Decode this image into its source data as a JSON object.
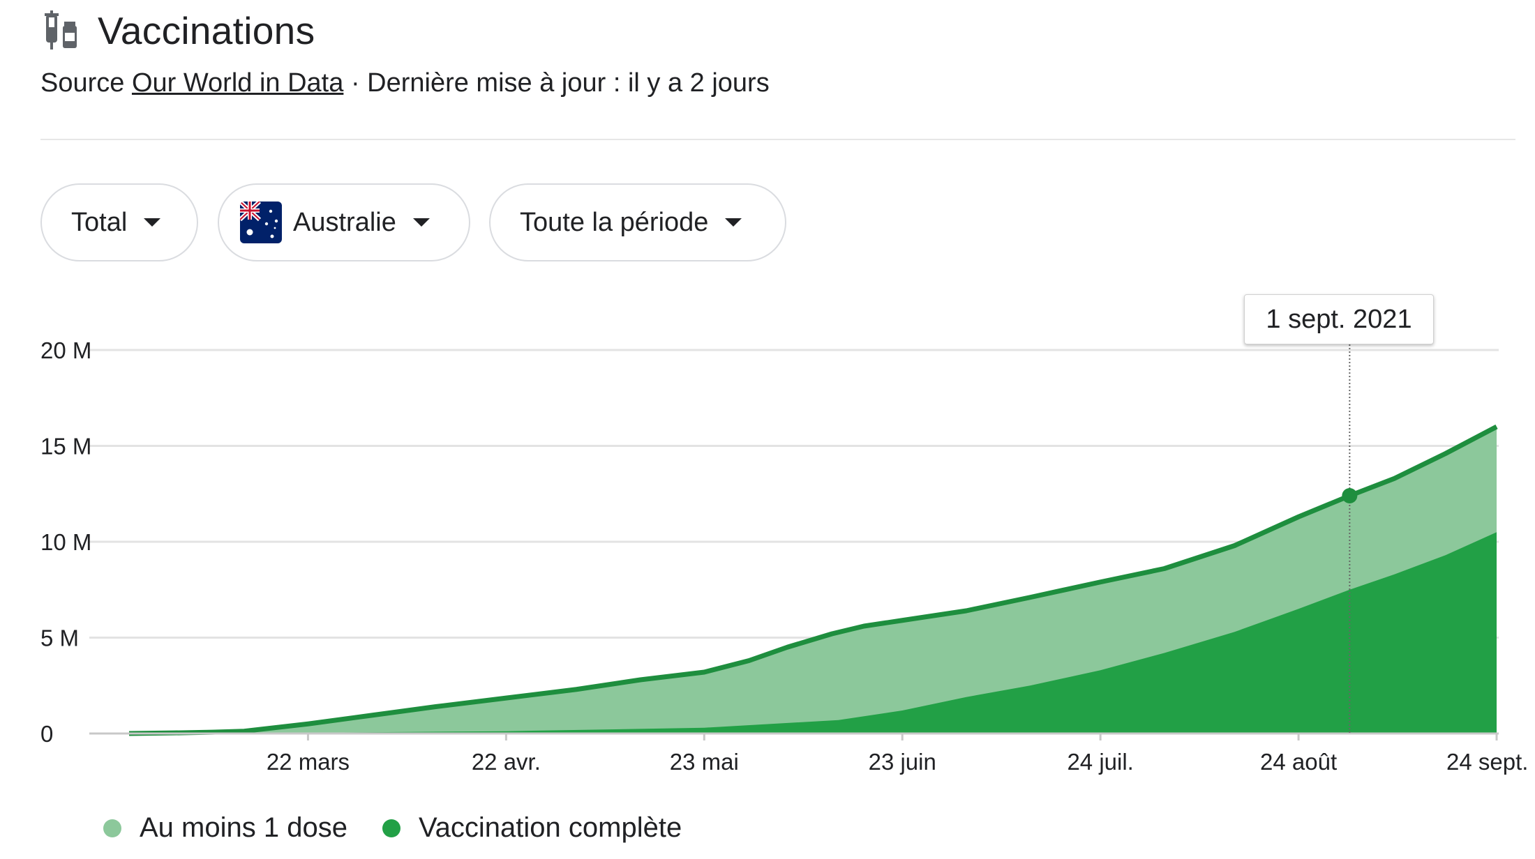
{
  "header": {
    "title": "Vaccinations",
    "icon": "syringe-vial-icon",
    "source_prefix": "Source",
    "source_link": "Our World in Data",
    "update_text": "· Dernière mise à jour : il y a 2 jours"
  },
  "filters": {
    "metric": "Total",
    "country": "Australie",
    "country_flag": "australia-flag-icon",
    "period": "Toute la période"
  },
  "tooltip": {
    "date": "1 sept. 2021"
  },
  "colors": {
    "at_least_one_dose": "#8cc89b",
    "fully_vaccinated": "#22a046",
    "line": "#1e8e3e",
    "grid": "#e3e3e3",
    "axis": "#c8c8c8"
  },
  "chart_data": {
    "type": "area",
    "title": "",
    "xlabel": "",
    "ylabel": "",
    "ylim": [
      0,
      20000000
    ],
    "y_ticks": [
      {
        "value": 0,
        "label": "0"
      },
      {
        "value": 5000000,
        "label": "5 M"
      },
      {
        "value": 10000000,
        "label": "10 M"
      },
      {
        "value": 15000000,
        "label": "15 M"
      },
      {
        "value": 20000000,
        "label": "20 M"
      }
    ],
    "x_range": [
      "2021-02-22",
      "2021-09-24"
    ],
    "x_ticks": [
      {
        "date": "2021-03-22",
        "label": "22 mars"
      },
      {
        "date": "2021-04-22",
        "label": "22 avr."
      },
      {
        "date": "2021-05-23",
        "label": "23 mai"
      },
      {
        "date": "2021-06-23",
        "label": "23 juin"
      },
      {
        "date": "2021-07-24",
        "label": "24 juil."
      },
      {
        "date": "2021-08-24",
        "label": "24 août"
      },
      {
        "date": "2021-09-24",
        "label": "24 sept."
      }
    ],
    "grid": true,
    "legend_position": "bottom-left",
    "series": [
      {
        "name": "Au moins 1 dose",
        "points": [
          [
            "2021-02-22",
            0
          ],
          [
            "2021-03-01",
            30000
          ],
          [
            "2021-03-07",
            70000
          ],
          [
            "2021-03-12",
            120000
          ],
          [
            "2021-03-22",
            500000
          ],
          [
            "2021-04-01",
            950000
          ],
          [
            "2021-04-11",
            1400000
          ],
          [
            "2021-04-22",
            1850000
          ],
          [
            "2021-05-03",
            2300000
          ],
          [
            "2021-05-13",
            2800000
          ],
          [
            "2021-05-23",
            3200000
          ],
          [
            "2021-05-30",
            3800000
          ],
          [
            "2021-06-05",
            4500000
          ],
          [
            "2021-06-12",
            5200000
          ],
          [
            "2021-06-17",
            5600000
          ],
          [
            "2021-06-23",
            5900000
          ],
          [
            "2021-07-03",
            6400000
          ],
          [
            "2021-07-13",
            7100000
          ],
          [
            "2021-07-24",
            7900000
          ],
          [
            "2021-08-03",
            8600000
          ],
          [
            "2021-08-14",
            9800000
          ],
          [
            "2021-08-24",
            11300000
          ],
          [
            "2021-09-01",
            12400000
          ],
          [
            "2021-09-08",
            13300000
          ],
          [
            "2021-09-16",
            14600000
          ],
          [
            "2021-09-24",
            16000000
          ]
        ]
      },
      {
        "name": "Vaccination complète",
        "points": [
          [
            "2021-02-22",
            0
          ],
          [
            "2021-03-22",
            40000
          ],
          [
            "2021-04-22",
            120000
          ],
          [
            "2021-05-23",
            300000
          ],
          [
            "2021-06-13",
            700000
          ],
          [
            "2021-06-23",
            1200000
          ],
          [
            "2021-07-03",
            1900000
          ],
          [
            "2021-07-13",
            2500000
          ],
          [
            "2021-07-24",
            3300000
          ],
          [
            "2021-08-03",
            4200000
          ],
          [
            "2021-08-14",
            5300000
          ],
          [
            "2021-08-24",
            6500000
          ],
          [
            "2021-09-01",
            7500000
          ],
          [
            "2021-09-08",
            8300000
          ],
          [
            "2021-09-16",
            9300000
          ],
          [
            "2021-09-24",
            10500000
          ]
        ]
      }
    ],
    "highlight": {
      "date": "2021-09-01",
      "value": 12400000
    }
  }
}
